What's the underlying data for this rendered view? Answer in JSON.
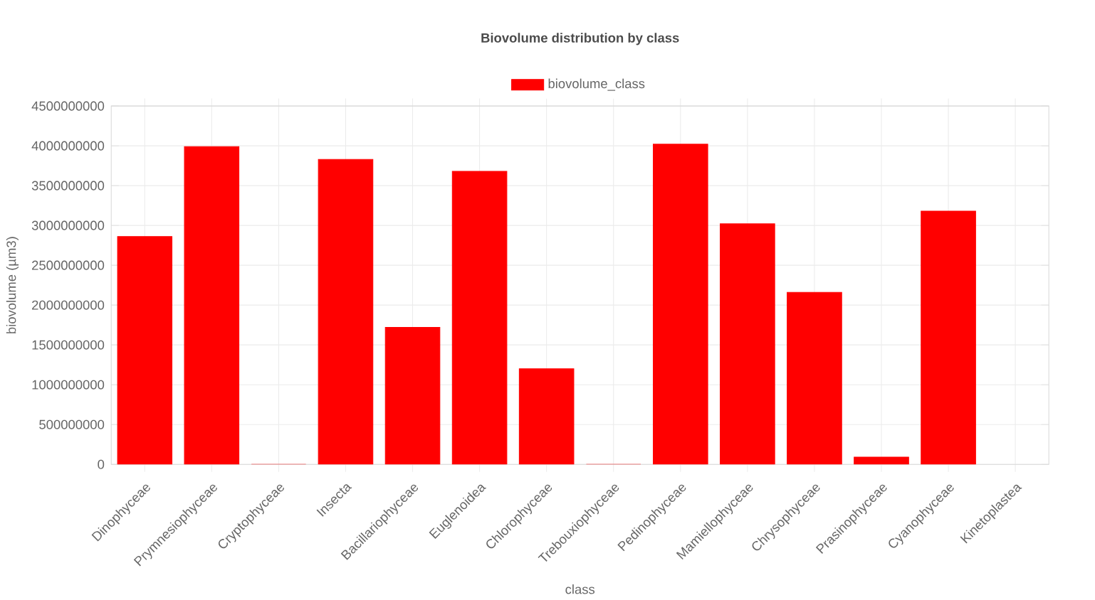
{
  "chart_data": {
    "type": "bar",
    "title": "Biovolume distribution by class",
    "xlabel": "class",
    "ylabel": "biovolume (µm3)",
    "categories": [
      "Dinophyceae",
      "Prymnesiophyceae",
      "Cryptophyceae",
      "Insecta",
      "Bacillariophyceae",
      "Euglenoidea",
      "Chlorophyceae",
      "Trebouxiophyceae",
      "Pedinophyceae",
      "Mamiellophyceae",
      "Chrysophyceae",
      "Prasinophyceae",
      "Cyanophyceae",
      "Kinetoplastea"
    ],
    "series": [
      {
        "name": "biovolume_class",
        "color": "#ff0000",
        "values": [
          2860000000,
          3990000000,
          0,
          3830000000,
          1720000000,
          3680000000,
          1200000000,
          0,
          4020000000,
          3020000000,
          2160000000,
          90000000,
          3180000000,
          null
        ]
      }
    ],
    "ylim": [
      0,
      4500000000
    ],
    "yticks": [
      0,
      500000000,
      1000000000,
      1500000000,
      2000000000,
      2500000000,
      3000000000,
      3500000000,
      4000000000,
      4500000000
    ],
    "grid": true,
    "legend": "top"
  }
}
